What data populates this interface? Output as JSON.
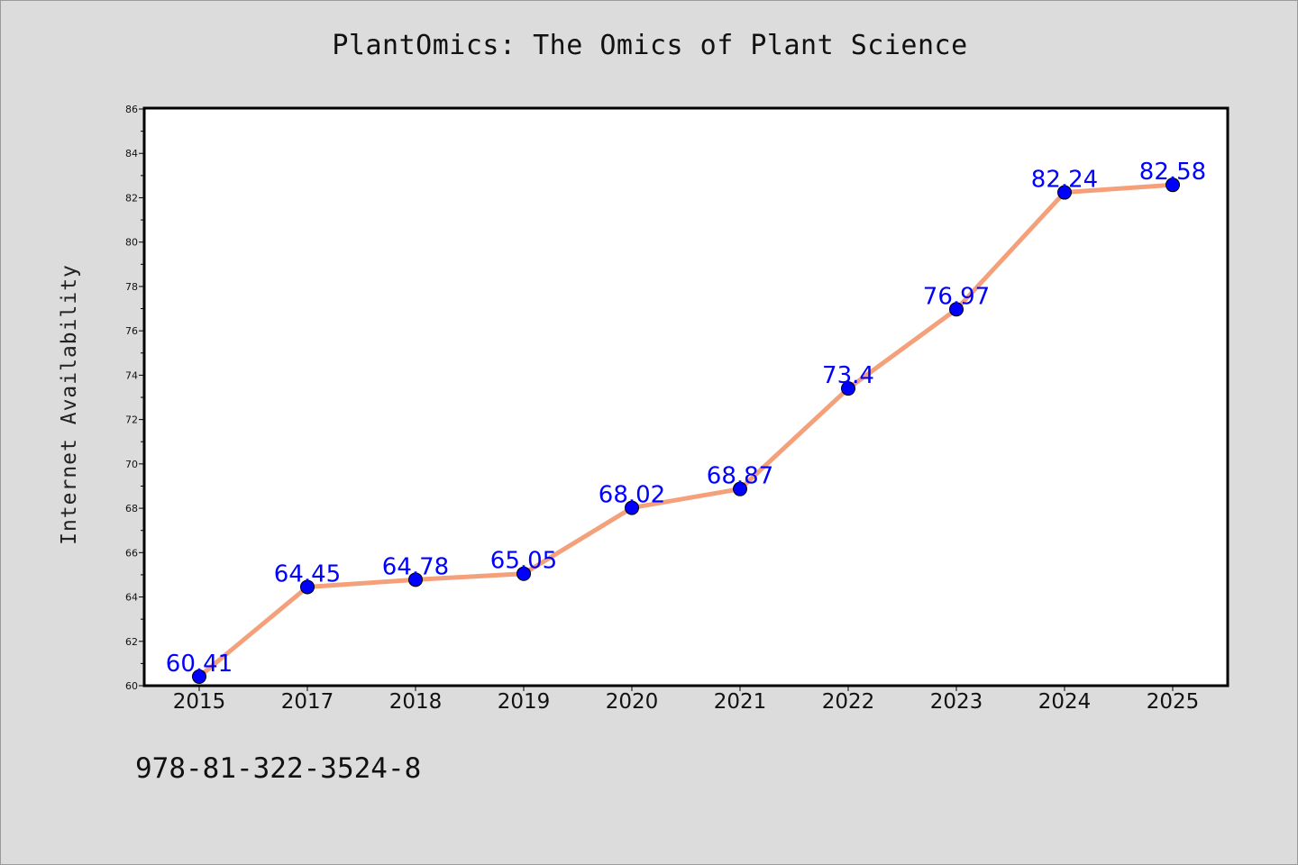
{
  "chart_data": {
    "type": "line",
    "title": "PlantOmics: The Omics of Plant Science",
    "xlabel": "",
    "ylabel": "Internet Availability",
    "categories": [
      "2015",
      "2017",
      "2018",
      "2019",
      "2020",
      "2021",
      "2022",
      "2023",
      "2024",
      "2025"
    ],
    "series": [
      {
        "values": [
          60.41,
          64.45,
          64.78,
          65.05,
          68.02,
          68.87,
          73.4,
          76.97,
          82.24,
          82.58
        ],
        "labels": [
          "60.41",
          "64.45",
          "64.78",
          "65.05",
          "68.02",
          "68.87",
          "73.4",
          "76.97",
          "82.24",
          "82.58"
        ]
      }
    ],
    "ylim": [
      60,
      86
    ],
    "yticks": [
      60,
      62,
      64,
      66,
      68,
      70,
      72,
      74,
      76,
      78,
      80,
      82,
      84,
      86
    ],
    "grid": false,
    "line_color": "#f4a07a",
    "marker_color": "#0000ff",
    "label_color": "#0000ff"
  },
  "footer": {
    "isbn": "978-81-322-3524-8"
  }
}
